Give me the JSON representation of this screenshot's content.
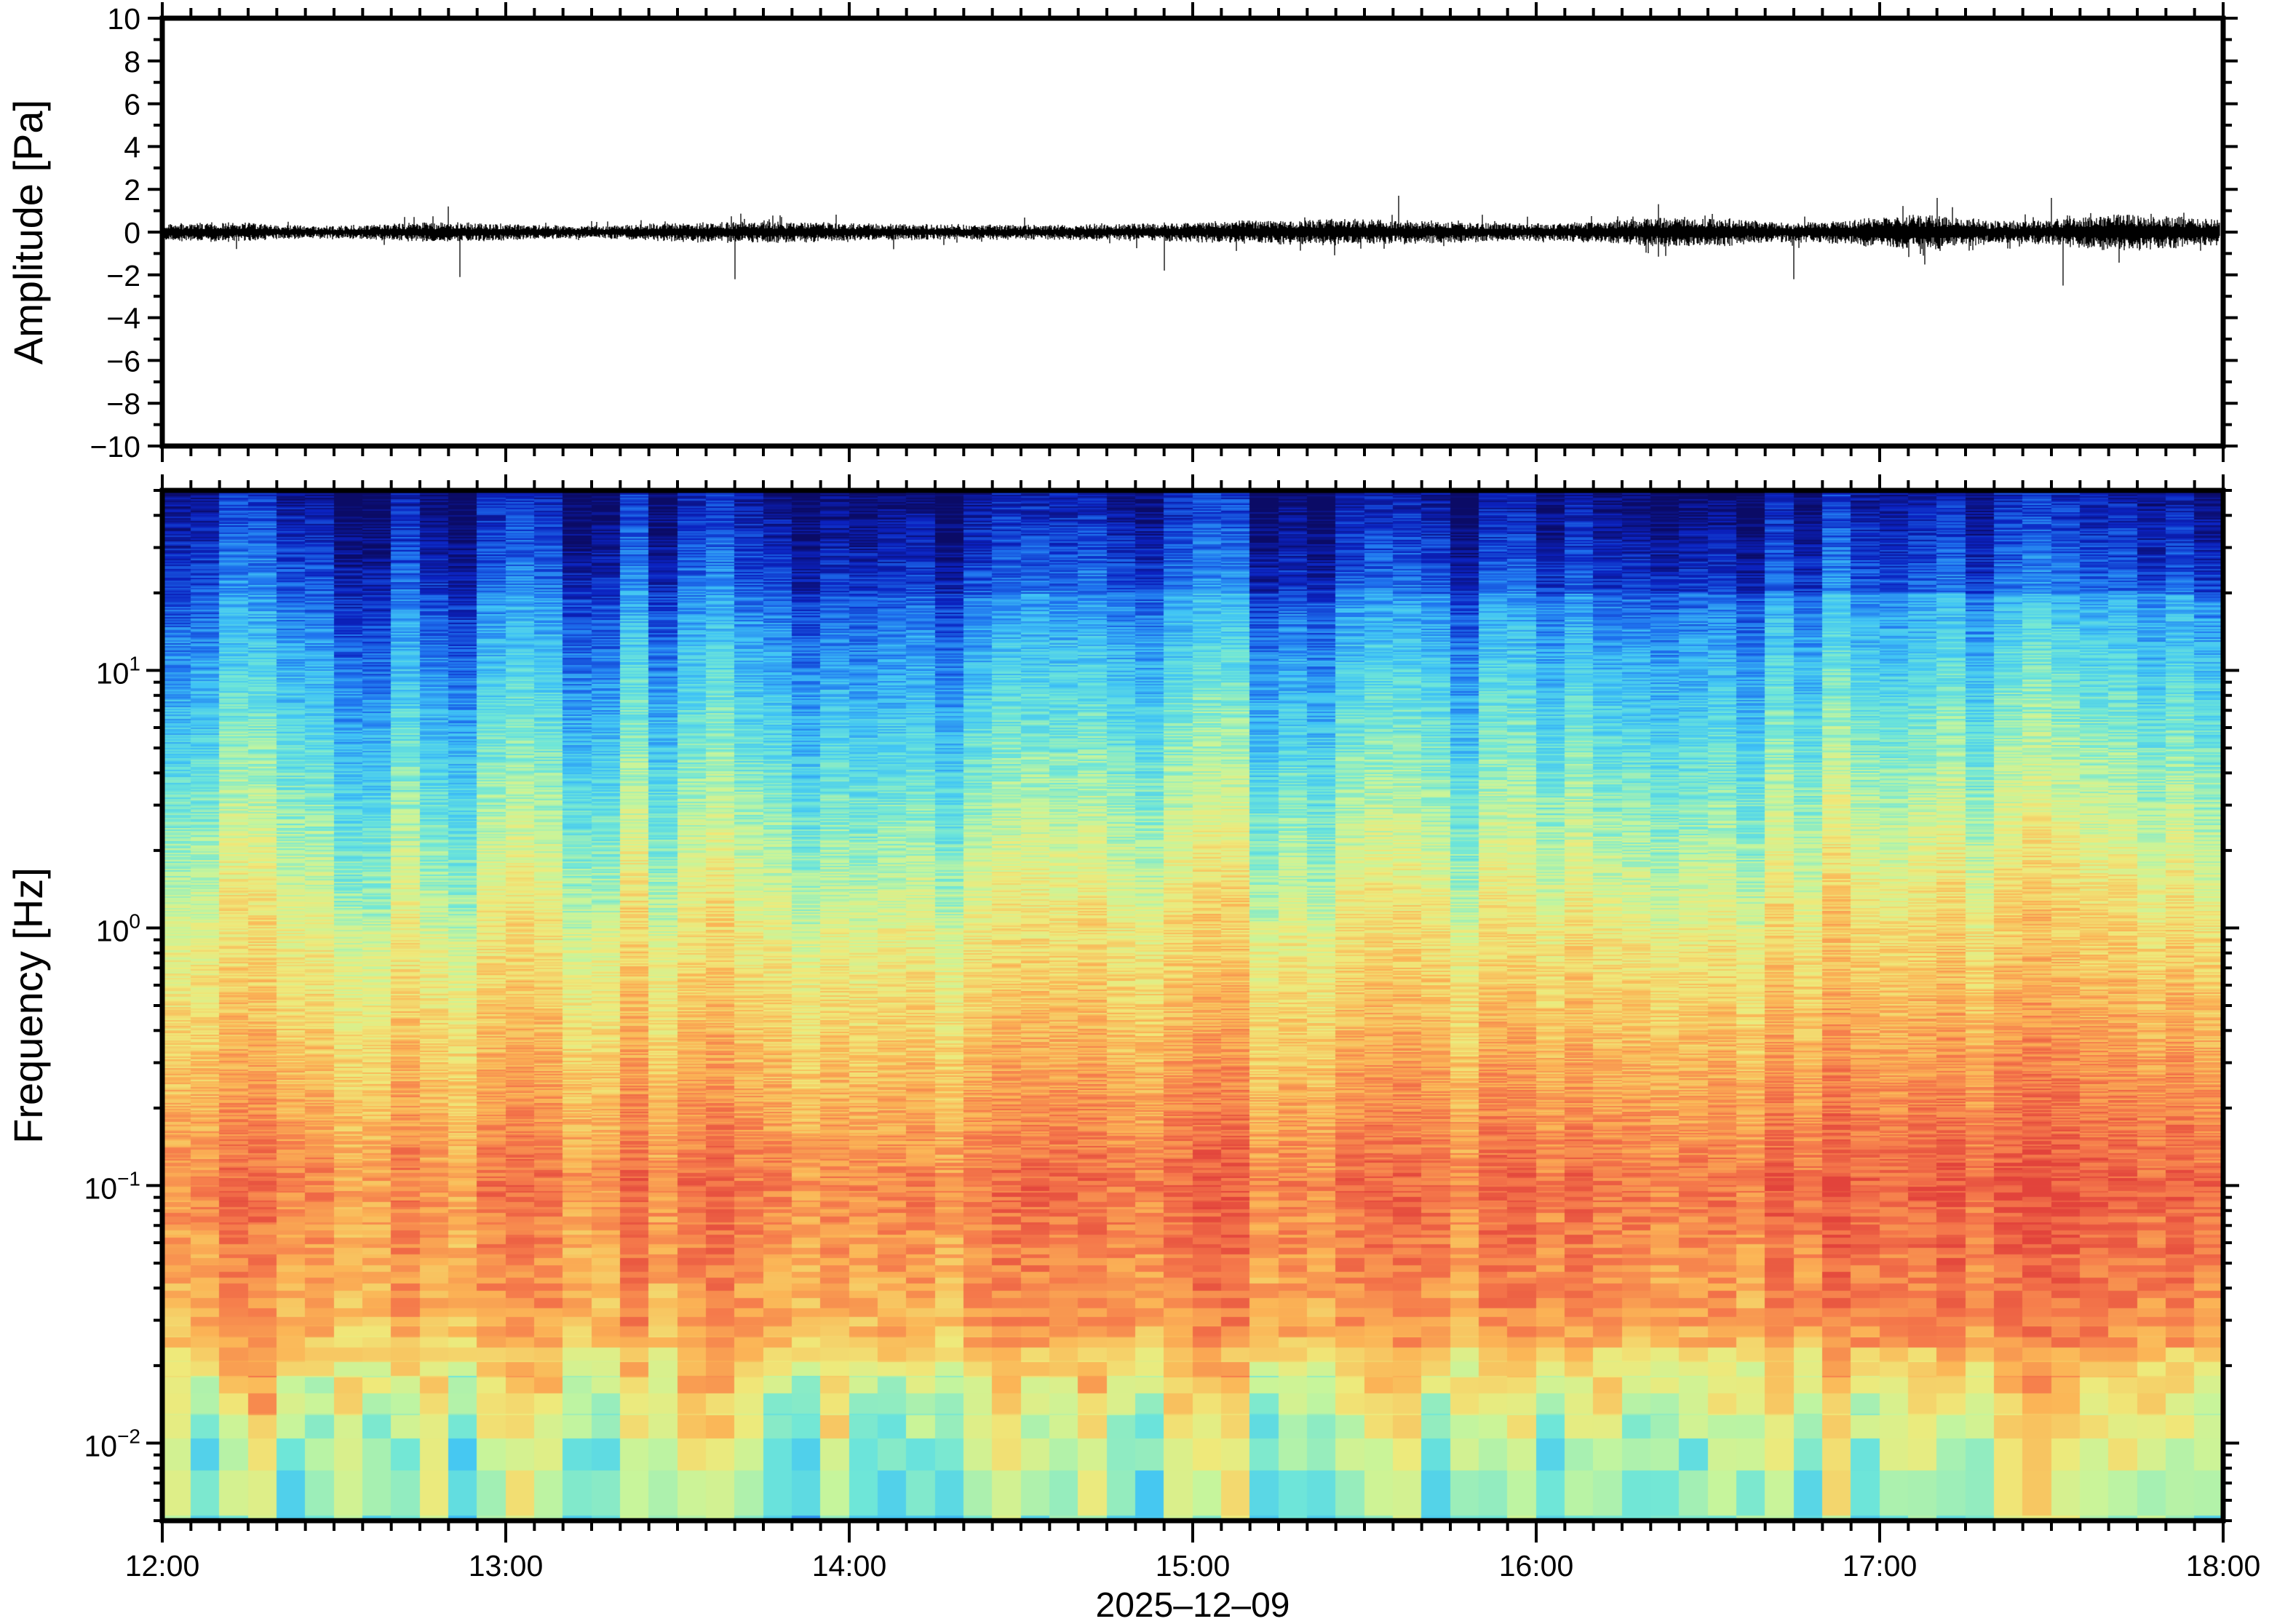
{
  "chart_data": [
    {
      "type": "line",
      "panel": "waveform",
      "ylabel": "Amplitude [Pa]",
      "ylim": [
        -10,
        10
      ],
      "yticks": [
        "10",
        "8",
        "6",
        "4",
        "2",
        "0",
        "−2",
        "−4",
        "−6",
        "−8",
        "−10"
      ],
      "ytick_values": [
        10,
        8,
        6,
        4,
        2,
        0,
        -2,
        -4,
        -6,
        -8,
        -10
      ],
      "xlim": [
        "12:00",
        "18:00"
      ],
      "typical_amplitude_start": 0.4,
      "typical_amplitude_end": 0.8,
      "notable_peaks": [
        {
          "time": "12:50",
          "value": 1.2
        },
        {
          "time": "12:52",
          "value": -2.1
        },
        {
          "time": "13:40",
          "value": -2.2
        },
        {
          "time": "14:55",
          "value": -1.8
        },
        {
          "time": "15:36",
          "value": 1.7
        },
        {
          "time": "16:45",
          "value": -2.2
        },
        {
          "time": "17:10",
          "value": 1.6
        },
        {
          "time": "17:32",
          "value": -2.5
        },
        {
          "time": "17:30",
          "value": 1.6
        }
      ],
      "line_color": "#000000"
    },
    {
      "type": "heatmap",
      "panel": "spectrogram",
      "ylabel": "Frequency [Hz]",
      "yscale": "log",
      "ylim": [
        0.005,
        50
      ],
      "yticks": [
        {
          "base": "10",
          "exp": "1",
          "value": 10
        },
        {
          "base": "10",
          "exp": "0",
          "value": 1
        },
        {
          "base": "10",
          "exp": "−1",
          "value": 0.1
        },
        {
          "base": "10",
          "exp": "−2",
          "value": 0.01
        }
      ],
      "xlabel": "2025–12–09",
      "xticks": [
        "12:00",
        "13:00",
        "14:00",
        "15:00",
        "16:00",
        "17:00",
        "18:00"
      ],
      "xlim": [
        "12:00",
        "18:00"
      ],
      "time_segment_minutes": 5,
      "colormap": [
        "#0b0b66",
        "#0b22c0",
        "#1f74ef",
        "#40c4f5",
        "#6fe6d8",
        "#c6f59c",
        "#efe97a",
        "#fbb556",
        "#f5794b",
        "#e2433b"
      ],
      "relative_level_profile": [
        {
          "freq": 50,
          "level": 0.05
        },
        {
          "freq": 10,
          "level": 0.3
        },
        {
          "freq": 1,
          "level": 0.62
        },
        {
          "freq": 0.1,
          "level": 0.86
        },
        {
          "freq": 0.03,
          "level": 0.78
        },
        {
          "freq": 0.01,
          "level": 0.55
        },
        {
          "freq": 0.005,
          "level": 0.47
        }
      ]
    }
  ]
}
